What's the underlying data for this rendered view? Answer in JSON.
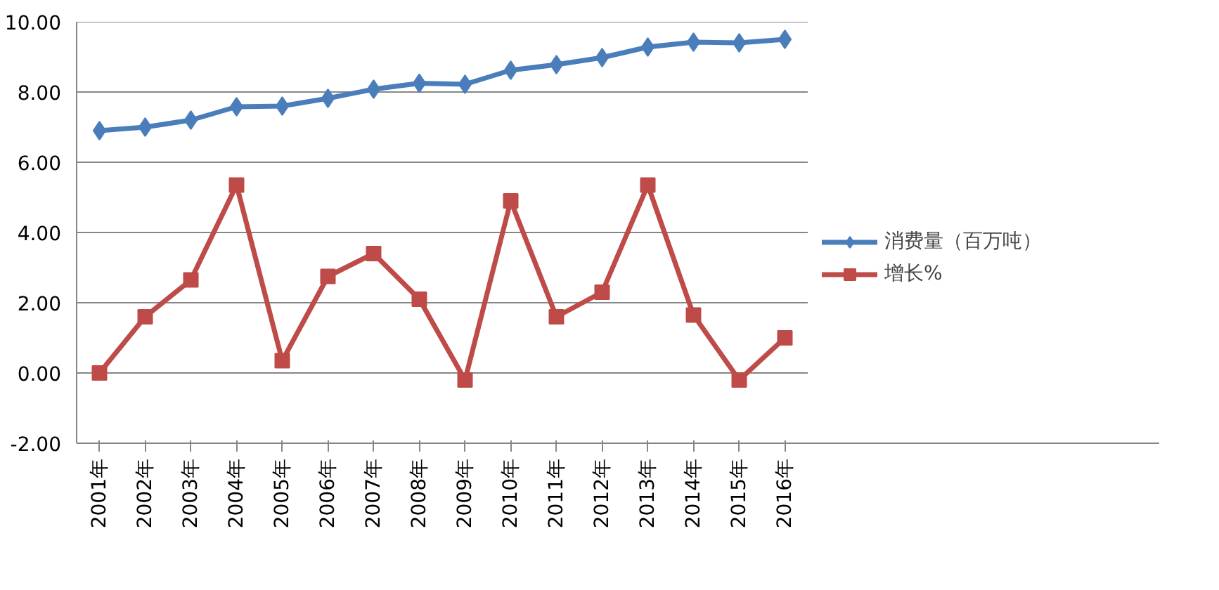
{
  "chart_data": {
    "type": "line",
    "categories": [
      "2001年",
      "2002年",
      "2003年",
      "2004年",
      "2005年",
      "2006年",
      "2007年",
      "2008年",
      "2009年",
      "2010年",
      "2011年",
      "2012年",
      "2013年",
      "2014年",
      "2015年",
      "2016年"
    ],
    "series": [
      {
        "name": "消费量（百万吨）",
        "color": "#4a7ebb",
        "marker": "diamond",
        "values": [
          6.9,
          7.0,
          7.2,
          7.58,
          7.6,
          7.82,
          8.08,
          8.25,
          8.22,
          8.62,
          8.78,
          8.98,
          9.28,
          9.42,
          9.4,
          9.5
        ]
      },
      {
        "name": "增长%",
        "color": "#be4b48",
        "marker": "square",
        "values": [
          0.0,
          1.6,
          2.65,
          5.35,
          0.35,
          2.75,
          3.4,
          2.1,
          -0.2,
          4.9,
          1.6,
          2.3,
          5.35,
          1.65,
          -0.2,
          1.0
        ]
      }
    ],
    "ylim": [
      -2,
      10
    ],
    "yticks": [
      {
        "value": -2,
        "label": "-2.00"
      },
      {
        "value": 0,
        "label": "0.00"
      },
      {
        "value": 2,
        "label": "2.00"
      },
      {
        "value": 4,
        "label": "4.00"
      },
      {
        "value": 6,
        "label": "6.00"
      },
      {
        "value": 8,
        "label": "8.00"
      },
      {
        "value": 10,
        "label": "10.00"
      }
    ],
    "grid": "y",
    "legend": "right",
    "line_style": "solid"
  }
}
